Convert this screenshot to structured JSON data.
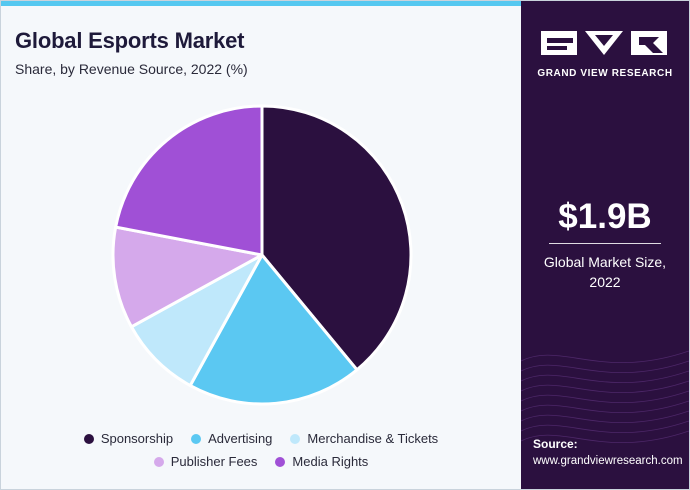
{
  "header": {
    "title": "Global Esports Market",
    "subtitle": "Share, by Revenue Source, 2022 (%)"
  },
  "sidebar": {
    "brand": "GRAND VIEW RESEARCH",
    "market_size": "$1.9B",
    "market_size_label_line1": "Global Market Size,",
    "market_size_label_line2": "2022",
    "source_label": "Source:",
    "source_url": "www.grandviewresearch.com"
  },
  "colors": {
    "accent_bar": "#55c8f0",
    "sidebar_bg": "#2b103f"
  },
  "chart_data": {
    "type": "pie",
    "title": "Global Esports Market",
    "subtitle": "Share, by Revenue Source, 2022 (%)",
    "legend_position": "bottom",
    "slices": [
      {
        "name": "Sponsorship",
        "value": 39,
        "color": "#2b103f"
      },
      {
        "name": "Advertising",
        "value": 19,
        "color": "#5bc8f2"
      },
      {
        "name": "Merchandise & Tickets",
        "value": 9,
        "color": "#bfe8fb"
      },
      {
        "name": "Publisher Fees",
        "value": 11,
        "color": "#d5a9eb"
      },
      {
        "name": "Media Rights",
        "value": 22,
        "color": "#a050d6"
      }
    ]
  }
}
